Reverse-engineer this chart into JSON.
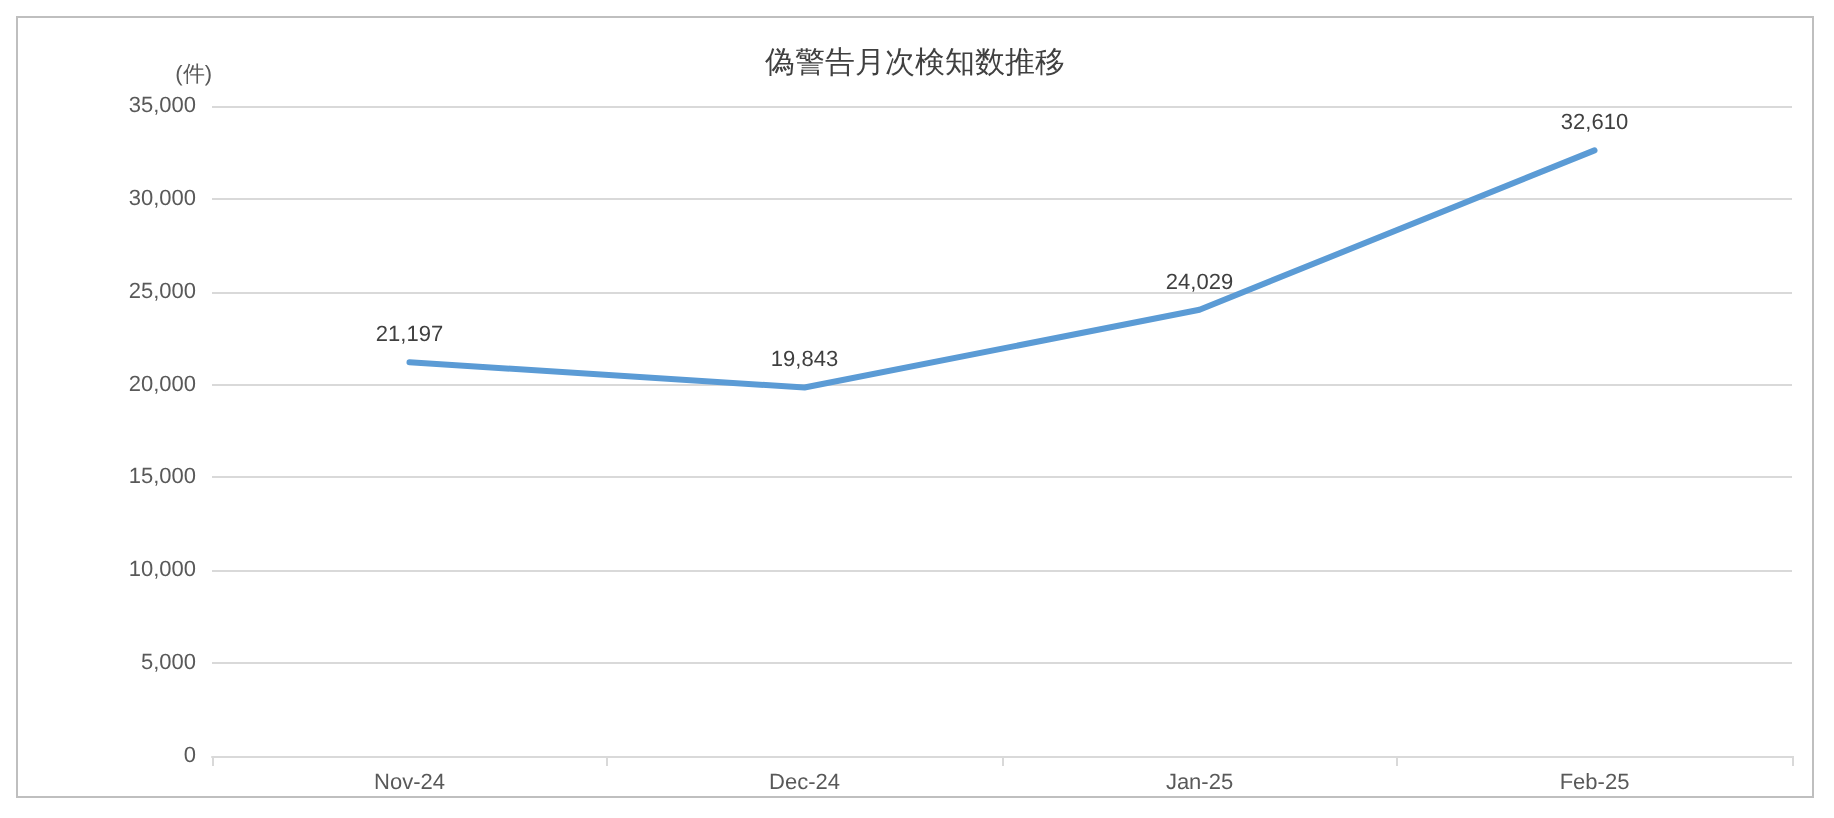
{
  "chart_data": {
    "type": "line",
    "title": "偽警告月次検知数推移",
    "ylabel": "(件)",
    "categories": [
      "Nov-24",
      "Dec-24",
      "Jan-25",
      "Feb-25"
    ],
    "series": [
      {
        "color": "#5b9bd5",
        "values": [
          21197,
          19843,
          24029,
          32610
        ],
        "value_labels": [
          "21,197",
          "19,843",
          "24,029",
          "32,610"
        ]
      }
    ],
    "ylim": [
      0,
      35000
    ],
    "yticks": [
      0,
      {
        "value": 5000,
        "label": "5,000"
      },
      {
        "value": 10000,
        "label": "10,000"
      },
      {
        "value": 15000,
        "label": "15,000"
      },
      {
        "value": 20000,
        "label": "20,000"
      },
      {
        "value": 25000,
        "label": "25,000"
      },
      {
        "value": 30000,
        "label": "30,000"
      },
      {
        "value": 35000,
        "label": "35,000"
      }
    ],
    "grid": "y",
    "marker": "none",
    "line_style": "solid"
  }
}
